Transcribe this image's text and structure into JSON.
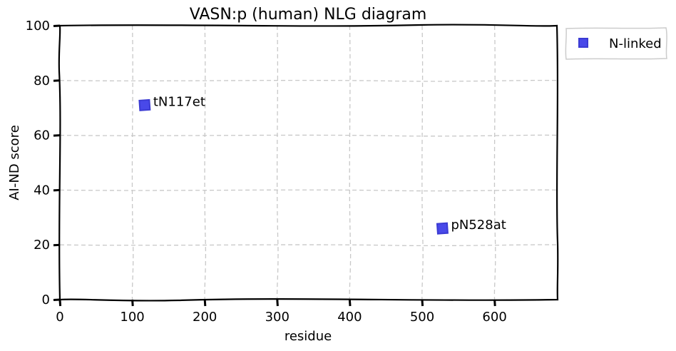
{
  "chart_data": {
    "type": "scatter",
    "title": "VASN:p (human) NLG diagram",
    "xlabel": "residue",
    "ylabel": "AI-ND score",
    "xlim": [
      0,
      687
    ],
    "ylim": [
      0,
      100
    ],
    "xticks": [
      0,
      100,
      200,
      300,
      400,
      500,
      600
    ],
    "yticks": [
      0,
      20,
      40,
      60,
      80,
      100
    ],
    "grid": true,
    "legend_position": "outside-top-right",
    "series": [
      {
        "name": "N-linked",
        "color": "#2a2ae6",
        "marker": "square",
        "points": [
          {
            "x": 117,
            "y": 71,
            "label": "tN117et"
          },
          {
            "x": 528,
            "y": 26,
            "label": "pN528at"
          }
        ]
      }
    ]
  }
}
